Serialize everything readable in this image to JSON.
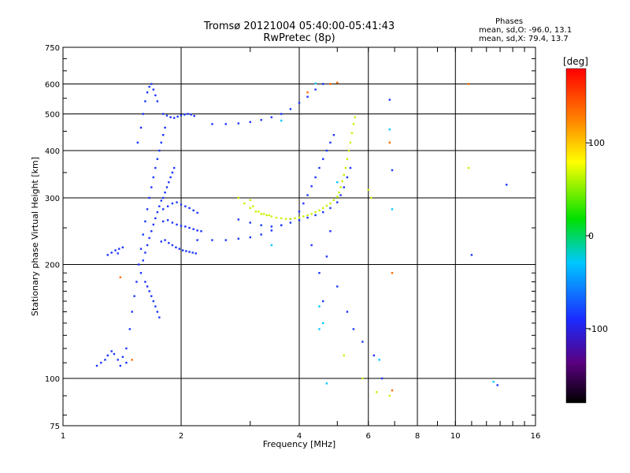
{
  "chart_data": {
    "type": "scatter",
    "title": "Tromsø 20121004 05:40:00-05:41:43",
    "subtitle": "RwPretec (8p)",
    "xlabel": "Frequency [MHz]",
    "ylabel": "Stationary phase Virtual Height [km]",
    "x_scale": "log2",
    "y_scale": "log",
    "xlim": [
      1,
      16
    ],
    "ylim": [
      75,
      750
    ],
    "x_ticks": [
      "1",
      "2",
      "4",
      "6",
      "8",
      "10",
      "16"
    ],
    "x_tick_values": [
      1,
      2,
      4,
      6,
      8,
      10,
      16
    ],
    "y_ticks": [
      "750",
      "600",
      "500",
      "400",
      "300",
      "200",
      "100",
      "75"
    ],
    "y_tick_values": [
      750,
      600,
      500,
      400,
      300,
      200,
      100,
      75
    ],
    "grid": true,
    "legend": {
      "title": "Phases",
      "line1": "mean, sd,O: -96.0, 13.1",
      "line2": "mean, sd,X:  79.4, 13.7",
      "placement": "top-right"
    },
    "colorbar": {
      "label": "[deg]",
      "ticks": [
        "100",
        "0",
        "-100"
      ],
      "tick_values": [
        100,
        0,
        -100
      ],
      "range": [
        -180,
        180
      ]
    },
    "series": [
      {
        "name": "O",
        "color": "#1a33ff",
        "points": [
          [
            1.22,
            108
          ],
          [
            1.25,
            110
          ],
          [
            1.28,
            112
          ],
          [
            1.3,
            115
          ],
          [
            1.33,
            118
          ],
          [
            1.35,
            116
          ],
          [
            1.38,
            112
          ],
          [
            1.4,
            108
          ],
          [
            1.42,
            114
          ],
          [
            1.45,
            110
          ],
          [
            1.3,
            212
          ],
          [
            1.33,
            215
          ],
          [
            1.36,
            218
          ],
          [
            1.39,
            220
          ],
          [
            1.42,
            222
          ],
          [
            1.38,
            214
          ],
          [
            1.45,
            120
          ],
          [
            1.48,
            135
          ],
          [
            1.5,
            150
          ],
          [
            1.52,
            165
          ],
          [
            1.54,
            180
          ],
          [
            1.56,
            200
          ],
          [
            1.58,
            220
          ],
          [
            1.6,
            240
          ],
          [
            1.62,
            260
          ],
          [
            1.64,
            280
          ],
          [
            1.66,
            300
          ],
          [
            1.68,
            320
          ],
          [
            1.7,
            340
          ],
          [
            1.72,
            360
          ],
          [
            1.74,
            380
          ],
          [
            1.76,
            400
          ],
          [
            1.78,
            420
          ],
          [
            1.8,
            440
          ],
          [
            1.82,
            460
          ],
          [
            1.55,
            420
          ],
          [
            1.58,
            460
          ],
          [
            1.6,
            500
          ],
          [
            1.62,
            540
          ],
          [
            1.64,
            570
          ],
          [
            1.66,
            590
          ],
          [
            1.68,
            600
          ],
          [
            1.7,
            580
          ],
          [
            1.72,
            560
          ],
          [
            1.74,
            540
          ],
          [
            1.58,
            190
          ],
          [
            1.6,
            205
          ],
          [
            1.62,
            215
          ],
          [
            1.64,
            225
          ],
          [
            1.66,
            235
          ],
          [
            1.68,
            245
          ],
          [
            1.7,
            255
          ],
          [
            1.72,
            265
          ],
          [
            1.74,
            275
          ],
          [
            1.76,
            285
          ],
          [
            1.78,
            295
          ],
          [
            1.8,
            300
          ],
          [
            1.82,
            310
          ],
          [
            1.84,
            320
          ],
          [
            1.86,
            330
          ],
          [
            1.88,
            340
          ],
          [
            1.9,
            350
          ],
          [
            1.92,
            360
          ],
          [
            1.62,
            180
          ],
          [
            1.64,
            175
          ],
          [
            1.66,
            170
          ],
          [
            1.68,
            165
          ],
          [
            1.7,
            160
          ],
          [
            1.72,
            155
          ],
          [
            1.74,
            150
          ],
          [
            1.76,
            145
          ],
          [
            1.8,
            500
          ],
          [
            1.84,
            495
          ],
          [
            1.88,
            490
          ],
          [
            1.92,
            488
          ],
          [
            1.96,
            492
          ],
          [
            2.0,
            496
          ],
          [
            2.04,
            498
          ],
          [
            2.08,
            500
          ],
          [
            2.12,
            498
          ],
          [
            2.16,
            494
          ],
          [
            1.78,
            230
          ],
          [
            1.82,
            232
          ],
          [
            1.86,
            228
          ],
          [
            1.9,
            225
          ],
          [
            1.94,
            222
          ],
          [
            1.98,
            220
          ],
          [
            2.02,
            218
          ],
          [
            2.06,
            217
          ],
          [
            2.1,
            216
          ],
          [
            2.14,
            215
          ],
          [
            2.18,
            214
          ],
          [
            1.8,
            260
          ],
          [
            1.85,
            262
          ],
          [
            1.9,
            258
          ],
          [
            1.95,
            255
          ],
          [
            2.0,
            253
          ],
          [
            2.05,
            252
          ],
          [
            2.1,
            250
          ],
          [
            2.15,
            248
          ],
          [
            2.2,
            246
          ],
          [
            2.25,
            245
          ],
          [
            1.8,
            280
          ],
          [
            1.85,
            285
          ],
          [
            1.9,
            290
          ],
          [
            1.95,
            292
          ],
          [
            2.0,
            288
          ],
          [
            2.05,
            285
          ],
          [
            2.1,
            282
          ],
          [
            2.15,
            278
          ],
          [
            2.2,
            274
          ],
          [
            2.2,
            232
          ],
          [
            2.4,
            232
          ],
          [
            2.6,
            232
          ],
          [
            2.8,
            234
          ],
          [
            3.0,
            236
          ],
          [
            3.2,
            240
          ],
          [
            3.4,
            246
          ],
          [
            3.6,
            254
          ],
          [
            3.8,
            264
          ],
          [
            4.0,
            276
          ],
          [
            4.1,
            290
          ],
          [
            4.2,
            305
          ],
          [
            4.3,
            322
          ],
          [
            4.4,
            340
          ],
          [
            4.5,
            360
          ],
          [
            4.6,
            380
          ],
          [
            4.7,
            400
          ],
          [
            4.8,
            420
          ],
          [
            4.9,
            440
          ],
          [
            2.4,
            470
          ],
          [
            2.6,
            470
          ],
          [
            2.8,
            472
          ],
          [
            3.0,
            476
          ],
          [
            3.2,
            482
          ],
          [
            3.4,
            490
          ],
          [
            3.6,
            500
          ],
          [
            3.8,
            515
          ],
          [
            4.0,
            535
          ],
          [
            4.2,
            555
          ],
          [
            4.4,
            580
          ],
          [
            4.6,
            600
          ],
          [
            2.8,
            263
          ],
          [
            3.0,
            258
          ],
          [
            3.2,
            254
          ],
          [
            3.4,
            252
          ],
          [
            3.6,
            254
          ],
          [
            3.8,
            258
          ],
          [
            4.0,
            262
          ],
          [
            4.2,
            266
          ],
          [
            4.4,
            270
          ],
          [
            4.6,
            275
          ],
          [
            4.8,
            282
          ],
          [
            5.0,
            292
          ],
          [
            5.1,
            305
          ],
          [
            5.2,
            320
          ],
          [
            5.3,
            340
          ],
          [
            5.4,
            360
          ],
          [
            4.3,
            225
          ],
          [
            4.5,
            190
          ],
          [
            4.6,
            160
          ],
          [
            4.7,
            210
          ],
          [
            4.8,
            245
          ],
          [
            5.0,
            175
          ],
          [
            5.3,
            150
          ],
          [
            5.5,
            135
          ],
          [
            5.8,
            125
          ],
          [
            6.2,
            115
          ],
          [
            6.5,
            100
          ],
          [
            6.8,
            545
          ],
          [
            6.9,
            355
          ],
          [
            11.0,
            212
          ],
          [
            13.5,
            325
          ],
          [
            12.8,
            96
          ]
        ]
      },
      {
        "name": "X",
        "color": "#c8f000",
        "points": [
          [
            2.8,
            300
          ],
          [
            2.9,
            290
          ],
          [
            3.0,
            282
          ],
          [
            3.1,
            276
          ],
          [
            3.2,
            272
          ],
          [
            3.3,
            270
          ],
          [
            3.4,
            268
          ],
          [
            3.5,
            266
          ],
          [
            3.6,
            265
          ],
          [
            3.7,
            264
          ],
          [
            3.8,
            264
          ],
          [
            3.9,
            265
          ],
          [
            4.0,
            266
          ],
          [
            4.1,
            268
          ],
          [
            4.2,
            270
          ],
          [
            4.3,
            272
          ],
          [
            4.4,
            275
          ],
          [
            4.5,
            278
          ],
          [
            4.6,
            282
          ],
          [
            4.7,
            286
          ],
          [
            4.8,
            290
          ],
          [
            4.9,
            296
          ],
          [
            5.0,
            302
          ],
          [
            5.05,
            310
          ],
          [
            5.1,
            320
          ],
          [
            5.15,
            332
          ],
          [
            5.2,
            345
          ],
          [
            5.25,
            360
          ],
          [
            5.3,
            380
          ],
          [
            5.35,
            400
          ],
          [
            5.4,
            420
          ],
          [
            5.45,
            445
          ],
          [
            5.5,
            470
          ],
          [
            5.55,
            490
          ],
          [
            3.0,
            296
          ],
          [
            3.05,
            285
          ],
          [
            3.15,
            276
          ],
          [
            3.25,
            272
          ],
          [
            3.35,
            270
          ],
          [
            6.0,
            315
          ],
          [
            6.1,
            300
          ],
          [
            6.8,
            420
          ],
          [
            5.2,
            115
          ],
          [
            5.8,
            100
          ],
          [
            6.3,
            92
          ],
          [
            6.8,
            90
          ],
          [
            10.8,
            360
          ]
        ]
      },
      {
        "name": "other",
        "color": "#ff6a00",
        "points": [
          [
            1.4,
            185
          ],
          [
            1.5,
            112
          ],
          [
            4.2,
            570
          ],
          [
            4.8,
            600
          ],
          [
            5.0,
            605
          ],
          [
            6.9,
            190
          ],
          [
            6.8,
            420
          ],
          [
            10.8,
            600
          ],
          [
            6.9,
            93
          ]
        ]
      },
      {
        "name": "cyan",
        "color": "#00c8ff",
        "points": [
          [
            3.6,
            480
          ],
          [
            4.4,
            602
          ],
          [
            4.5,
            155
          ],
          [
            4.6,
            140
          ],
          [
            4.7,
            97
          ],
          [
            5.0,
            330
          ],
          [
            6.4,
            112
          ],
          [
            6.8,
            455
          ],
          [
            6.9,
            280
          ],
          [
            12.5,
            98
          ],
          [
            3.4,
            225
          ],
          [
            4.5,
            135
          ]
        ]
      }
    ]
  }
}
